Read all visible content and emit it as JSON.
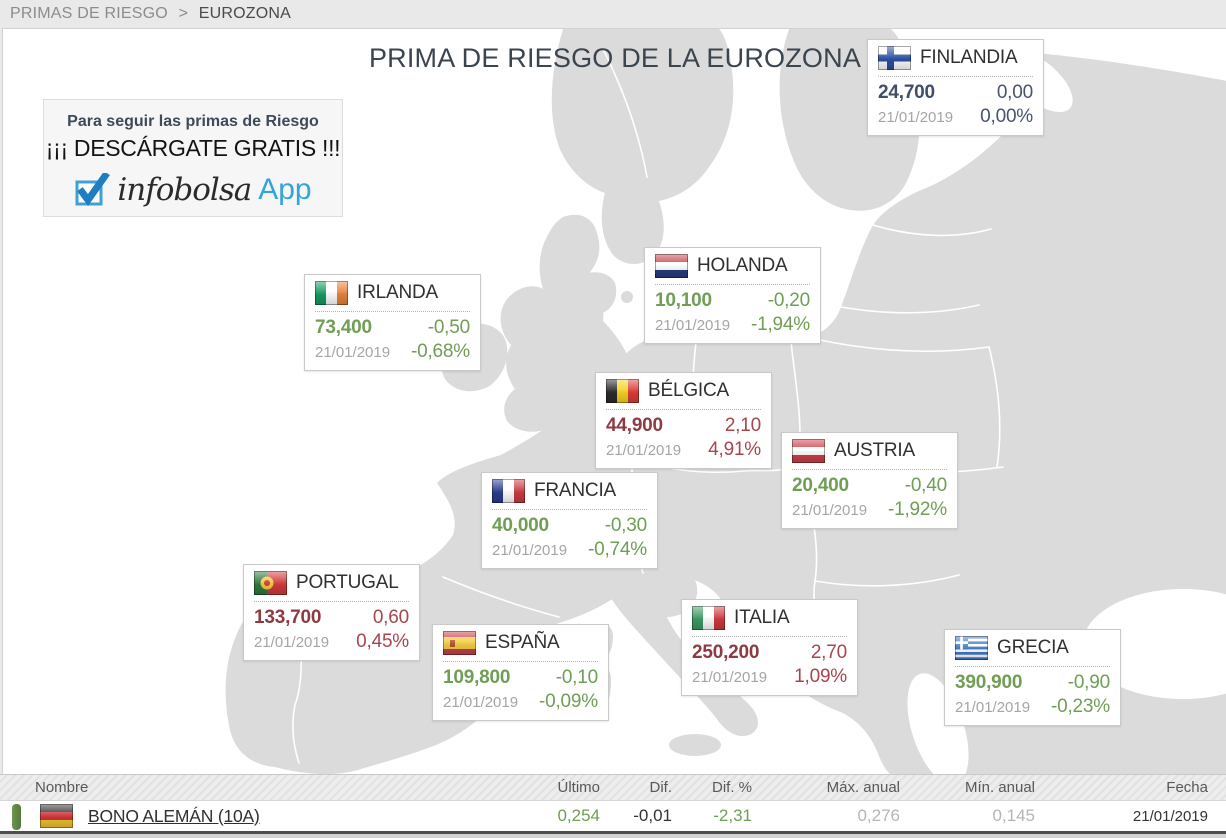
{
  "breadcrumb": {
    "section": "PRIMAS DE RIESGO",
    "separator": ">",
    "current": "EUROZONA"
  },
  "title": "PRIMA DE RIESGO DE LA EUROZONA",
  "promo": {
    "line1": "Para seguir las primas de Riesgo",
    "line2": "¡¡¡ DESCÁRGATE GRATIS !!!",
    "check_icon": "checkbox-checked-icon",
    "brand": "infobolsa",
    "brand_suffix": "App"
  },
  "colors": {
    "up_value": "#8d3a42",
    "up": "#a8454d",
    "down": "#6f9e54",
    "flat_value": "#404e68",
    "flat": "#47546e",
    "date_gray": "#a5a5a5",
    "map_land": "#dbdbdb",
    "accent_blue": "#35a3dc"
  },
  "cards": [
    {
      "id": "finlandia",
      "country": "FINLANDIA",
      "flag": "flag-finland",
      "value": "24,700",
      "dif": "0,00",
      "date": "21/01/2019",
      "dif_pct": "0,00%",
      "trend": "flat"
    },
    {
      "id": "holanda",
      "country": "HOLANDA",
      "flag": "flag-netherlands",
      "value": "10,100",
      "dif": "-0,20",
      "date": "21/01/2019",
      "dif_pct": "-1,94%",
      "trend": "down"
    },
    {
      "id": "irlanda",
      "country": "IRLANDA",
      "flag": "flag-ireland",
      "value": "73,400",
      "dif": "-0,50",
      "date": "21/01/2019",
      "dif_pct": "-0,68%",
      "trend": "down"
    },
    {
      "id": "belgica",
      "country": "BÉLGICA",
      "flag": "flag-belgium",
      "value": "44,900",
      "dif": "2,10",
      "date": "21/01/2019",
      "dif_pct": "4,91%",
      "trend": "up"
    },
    {
      "id": "austria",
      "country": "AUSTRIA",
      "flag": "flag-austria",
      "value": "20,400",
      "dif": "-0,40",
      "date": "21/01/2019",
      "dif_pct": "-1,92%",
      "trend": "down"
    },
    {
      "id": "francia",
      "country": "FRANCIA",
      "flag": "flag-france",
      "value": "40,000",
      "dif": "-0,30",
      "date": "21/01/2019",
      "dif_pct": "-0,74%",
      "trend": "down"
    },
    {
      "id": "portugal",
      "country": "PORTUGAL",
      "flag": "flag-portugal",
      "value": "133,700",
      "dif": "0,60",
      "date": "21/01/2019",
      "dif_pct": "0,45%",
      "trend": "up"
    },
    {
      "id": "italia",
      "country": "ITALIA",
      "flag": "flag-italy",
      "value": "250,200",
      "dif": "2,70",
      "date": "21/01/2019",
      "dif_pct": "1,09%",
      "trend": "up"
    },
    {
      "id": "espana",
      "country": "ESPAÑA",
      "flag": "flag-spain",
      "value": "109,800",
      "dif": "-0,10",
      "date": "21/01/2019",
      "dif_pct": "-0,09%",
      "trend": "down"
    },
    {
      "id": "grecia",
      "country": "GRECIA",
      "flag": "flag-greece",
      "value": "390,900",
      "dif": "-0,90",
      "date": "21/01/2019",
      "dif_pct": "-0,23%",
      "trend": "down"
    }
  ],
  "table": {
    "headers": [
      "Nombre",
      "Último",
      "Dif.",
      "Dif. %",
      "Máx. anual",
      "Mín. anual",
      "Fecha"
    ],
    "rows": [
      {
        "flag": "flag-germany",
        "name": "BONO ALEMÁN (10A)",
        "ultimo": "0,254",
        "dif": "-0,01",
        "dif_pct": "-2,31",
        "max_anual": "0,276",
        "min_anual": "0,145",
        "fecha": "21/01/2019",
        "trend": "down"
      }
    ]
  }
}
